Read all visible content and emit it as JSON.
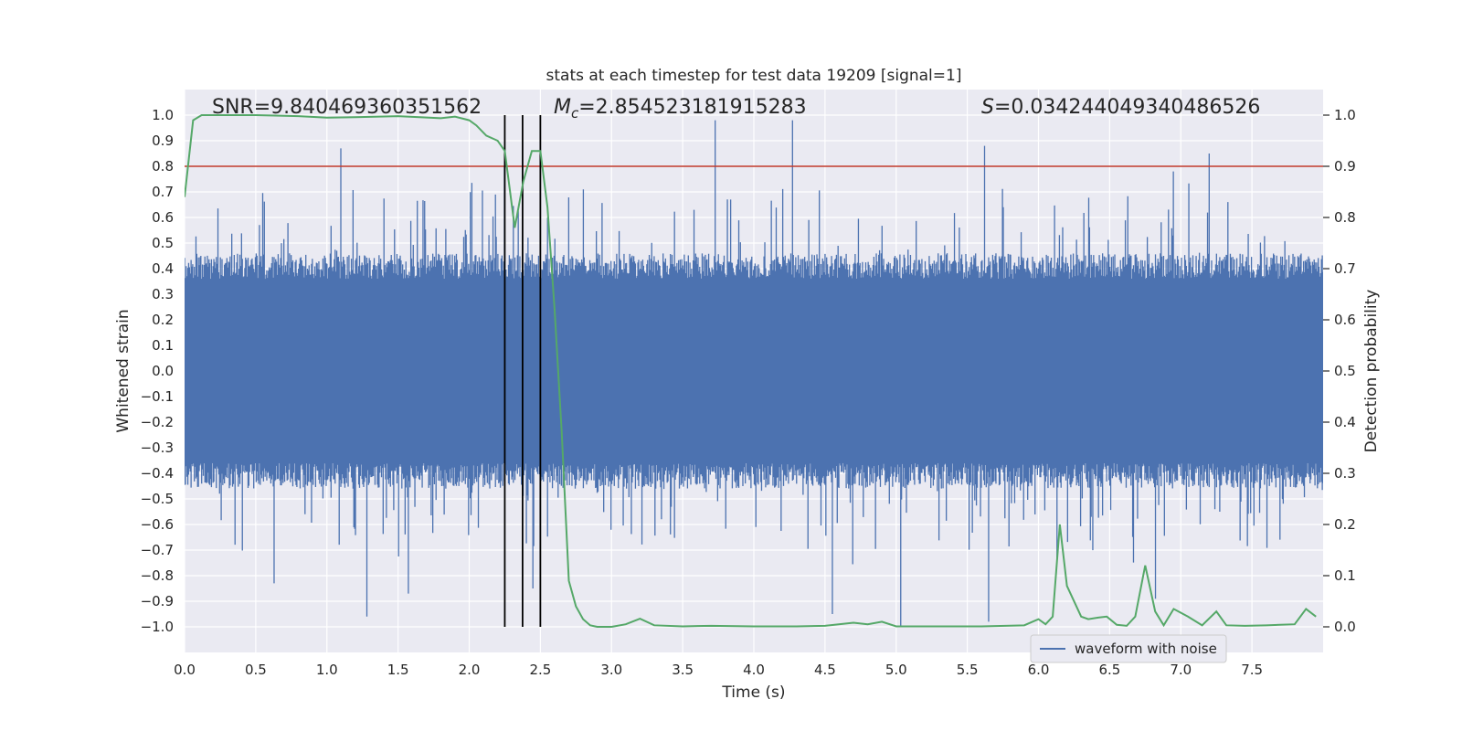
{
  "chart_data": {
    "type": "line",
    "title": "stats at each timestep for test data 19209 [signal=1]",
    "xlabel": "Time (s)",
    "ylabel_left": "Whitened strain",
    "ylabel_right": "Detection probability",
    "xlim": [
      0.0,
      8.0
    ],
    "ylim_left": [
      -1.1,
      1.1
    ],
    "ylim_right": [
      -0.05,
      1.05
    ],
    "x_ticks": [
      "0.0",
      "0.5",
      "1.0",
      "1.5",
      "2.0",
      "2.5",
      "3.0",
      "3.5",
      "4.0",
      "4.5",
      "5.0",
      "5.5",
      "6.0",
      "6.5",
      "7.0",
      "7.5"
    ],
    "y_ticks_left": [
      "1.0",
      "0.9",
      "0.8",
      "0.7",
      "0.6",
      "0.5",
      "0.4",
      "0.3",
      "0.2",
      "0.1",
      "0.0",
      "−0.1",
      "−0.2",
      "−0.3",
      "−0.4",
      "−0.5",
      "−0.6",
      "−0.7",
      "−0.8",
      "−0.9",
      "−1.0"
    ],
    "y_ticks_right": [
      "1.0",
      "0.9",
      "0.8",
      "0.7",
      "0.6",
      "0.5",
      "0.4",
      "0.3",
      "0.2",
      "0.1",
      "0.0"
    ],
    "grid": true,
    "legend_position": "lower-right",
    "annotations": {
      "snr": "SNR=9.840469360351562",
      "mc_symbol": "M",
      "mc_sub": "c",
      "mc_value": "=2.854523181915283",
      "s_symbol": "S",
      "s_value": "=0.034244049340486526"
    },
    "threshold_line": {
      "y_right": 0.9,
      "color": "#c0392b"
    },
    "vertical_lines": [
      2.25,
      2.375,
      2.5
    ],
    "series": [
      {
        "name": "waveform with noise",
        "color": "#4c72b0",
        "axis": "left",
        "description_level": "dense noise with envelope roughly ±0.4, peaks near ±0.7 to ±1.0",
        "peaks": [
          [
            0.63,
            -0.83
          ],
          [
            1.1,
            0.87
          ],
          [
            1.28,
            -0.96
          ],
          [
            1.57,
            -0.87
          ],
          [
            2.25,
            0.8
          ],
          [
            2.45,
            -0.85
          ],
          [
            3.73,
            0.98
          ],
          [
            4.27,
            0.98
          ],
          [
            4.55,
            -0.95
          ],
          [
            5.03,
            -1.0
          ],
          [
            5.62,
            0.88
          ],
          [
            5.65,
            -0.98
          ],
          [
            6.13,
            -0.75
          ],
          [
            6.82,
            -0.89
          ],
          [
            6.95,
            0.78
          ],
          [
            7.2,
            0.85
          ]
        ]
      },
      {
        "name": "",
        "color": "#55a868",
        "axis": "right",
        "x": [
          0.0,
          0.06,
          0.12,
          0.2,
          0.5,
          0.8,
          1.0,
          1.2,
          1.5,
          1.8,
          1.9,
          2.0,
          2.05,
          2.12,
          2.2,
          2.25,
          2.32,
          2.38,
          2.44,
          2.5,
          2.55,
          2.6,
          2.65,
          2.7,
          2.75,
          2.8,
          2.85,
          2.9,
          3.0,
          3.1,
          3.2,
          3.3,
          3.5,
          3.7,
          4.0,
          4.3,
          4.5,
          4.7,
          4.8,
          4.9,
          5.0,
          5.3,
          5.6,
          5.9,
          6.0,
          6.05,
          6.1,
          6.15,
          6.2,
          6.3,
          6.35,
          6.42,
          6.48,
          6.55,
          6.62,
          6.68,
          6.75,
          6.82,
          6.88,
          6.95,
          7.05,
          7.15,
          7.25,
          7.32,
          7.45,
          7.6,
          7.8,
          7.88,
          7.95
        ],
        "y": [
          0.84,
          0.99,
          1.0,
          1.0,
          1.0,
          0.998,
          0.995,
          0.996,
          0.998,
          0.994,
          0.997,
          0.99,
          0.98,
          0.96,
          0.95,
          0.93,
          0.78,
          0.87,
          0.93,
          0.93,
          0.82,
          0.62,
          0.38,
          0.09,
          0.04,
          0.015,
          0.003,
          0.0,
          0.0,
          0.005,
          0.016,
          0.003,
          0.001,
          0.002,
          0.001,
          0.001,
          0.002,
          0.008,
          0.005,
          0.01,
          0.001,
          0.001,
          0.001,
          0.003,
          0.015,
          0.005,
          0.02,
          0.2,
          0.08,
          0.02,
          0.015,
          0.018,
          0.02,
          0.004,
          0.002,
          0.02,
          0.12,
          0.03,
          0.003,
          0.035,
          0.02,
          0.003,
          0.03,
          0.003,
          0.002,
          0.003,
          0.005,
          0.035,
          0.02
        ]
      }
    ]
  }
}
